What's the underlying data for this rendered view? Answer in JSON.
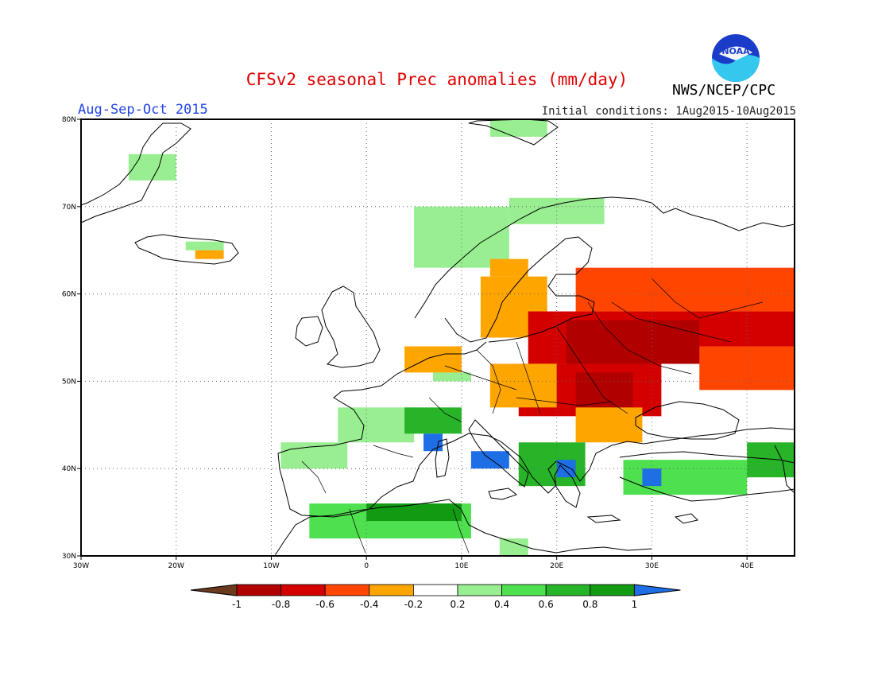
{
  "header": {
    "title": "CFSv2 seasonal Prec anomalies (mm/day)",
    "period": "Aug-Sep-Oct 2015",
    "initial_conditions": "Initial conditions: 1Aug2015-10Aug2015",
    "agency": "NWS/NCEP/CPC",
    "logo_text": "NOAA"
  },
  "chart_data": {
    "type": "heatmap",
    "xlim": [
      -30,
      45
    ],
    "ylim": [
      30,
      80
    ],
    "x_ticks": [
      {
        "value": -30,
        "label": "30W"
      },
      {
        "value": -20,
        "label": "20W"
      },
      {
        "value": -10,
        "label": "10W"
      },
      {
        "value": 0,
        "label": "0"
      },
      {
        "value": 10,
        "label": "10E"
      },
      {
        "value": 20,
        "label": "20E"
      },
      {
        "value": 30,
        "label": "30E"
      },
      {
        "value": 40,
        "label": "40E"
      }
    ],
    "y_ticks": [
      {
        "value": 30,
        "label": "30N"
      },
      {
        "value": 40,
        "label": "40N"
      },
      {
        "value": 50,
        "label": "50N"
      },
      {
        "value": 60,
        "label": "60N"
      },
      {
        "value": 70,
        "label": "70N"
      },
      {
        "value": 80,
        "label": "80N"
      }
    ],
    "grid": true,
    "colorbar": {
      "ticks": [
        "-1",
        "-0.8",
        "-0.6",
        "-0.4",
        "-0.2",
        "0.2",
        "0.4",
        "0.6",
        "0.8",
        "1"
      ],
      "colors": [
        "#6b3a1e",
        "#b00000",
        "#d40000",
        "#ff4500",
        "#ffa500",
        "#ffffff",
        "#98ee90",
        "#4ee04e",
        "#28b428",
        "#139a13",
        "#1e6ee6"
      ]
    },
    "regions": [
      {
        "lon": [
          -25,
          -20
        ],
        "lat": [
          73,
          76
        ],
        "value": 0.3
      },
      {
        "lon": [
          -19,
          -15
        ],
        "lat": [
          65,
          66
        ],
        "value": 0.3
      },
      {
        "lon": [
          -18,
          -15
        ],
        "lat": [
          64,
          65
        ],
        "value": -0.3
      },
      {
        "lon": [
          13,
          19
        ],
        "lat": [
          78,
          80
        ],
        "value": 0.3
      },
      {
        "lon": [
          5,
          15
        ],
        "lat": [
          63,
          70
        ],
        "value": 0.3
      },
      {
        "lon": [
          15,
          25
        ],
        "lat": [
          68,
          71
        ],
        "value": 0.3
      },
      {
        "lon": [
          13,
          17
        ],
        "lat": [
          62,
          64
        ],
        "value": -0.3
      },
      {
        "lon": [
          12,
          19
        ],
        "lat": [
          55,
          62
        ],
        "value": -0.3
      },
      {
        "lon": [
          22,
          45
        ],
        "lat": [
          58,
          63
        ],
        "value": -0.5
      },
      {
        "lon": [
          17,
          45
        ],
        "lat": [
          52,
          58
        ],
        "value": -0.7
      },
      {
        "lon": [
          21,
          35
        ],
        "lat": [
          52,
          57
        ],
        "value": -0.9
      },
      {
        "lon": [
          16,
          31
        ],
        "lat": [
          46,
          52
        ],
        "value": -0.6
      },
      {
        "lon": [
          22,
          28
        ],
        "lat": [
          47,
          51
        ],
        "value": -0.9
      },
      {
        "lon": [
          35,
          45
        ],
        "lat": [
          49,
          54
        ],
        "value": -0.4
      },
      {
        "lon": [
          13,
          20
        ],
        "lat": [
          47,
          52
        ],
        "value": -0.3
      },
      {
        "lon": [
          22,
          29
        ],
        "lat": [
          43,
          47
        ],
        "value": -0.3
      },
      {
        "lon": [
          4,
          10
        ],
        "lat": [
          51,
          54
        ],
        "value": -0.3
      },
      {
        "lon": [
          7,
          11
        ],
        "lat": [
          50,
          51
        ],
        "value": 0.3
      },
      {
        "lon": [
          -3,
          5
        ],
        "lat": [
          43,
          47
        ],
        "value": 0.3
      },
      {
        "lon": [
          -9,
          -2
        ],
        "lat": [
          40,
          43
        ],
        "value": 0.3
      },
      {
        "lon": [
          4,
          10
        ],
        "lat": [
          44,
          47
        ],
        "value": 0.6
      },
      {
        "lon": [
          6,
          8
        ],
        "lat": [
          42,
          44
        ],
        "value": 1.0
      },
      {
        "lon": [
          11,
          15
        ],
        "lat": [
          40,
          42
        ],
        "value": 1.0
      },
      {
        "lon": [
          16,
          23
        ],
        "lat": [
          38,
          43
        ],
        "value": 0.7
      },
      {
        "lon": [
          20,
          22
        ],
        "lat": [
          39,
          41
        ],
        "value": 1.0
      },
      {
        "lon": [
          27,
          40
        ],
        "lat": [
          37,
          41
        ],
        "value": 0.5
      },
      {
        "lon": [
          29,
          31
        ],
        "lat": [
          38,
          40
        ],
        "value": 1.0
      },
      {
        "lon": [
          40,
          45
        ],
        "lat": [
          39,
          43
        ],
        "value": 0.6
      },
      {
        "lon": [
          -6,
          11
        ],
        "lat": [
          32,
          36
        ],
        "value": 0.5
      },
      {
        "lon": [
          0,
          10
        ],
        "lat": [
          34,
          36
        ],
        "value": 0.9
      },
      {
        "lon": [
          14,
          17
        ],
        "lat": [
          30,
          32
        ],
        "value": 0.3
      }
    ]
  }
}
